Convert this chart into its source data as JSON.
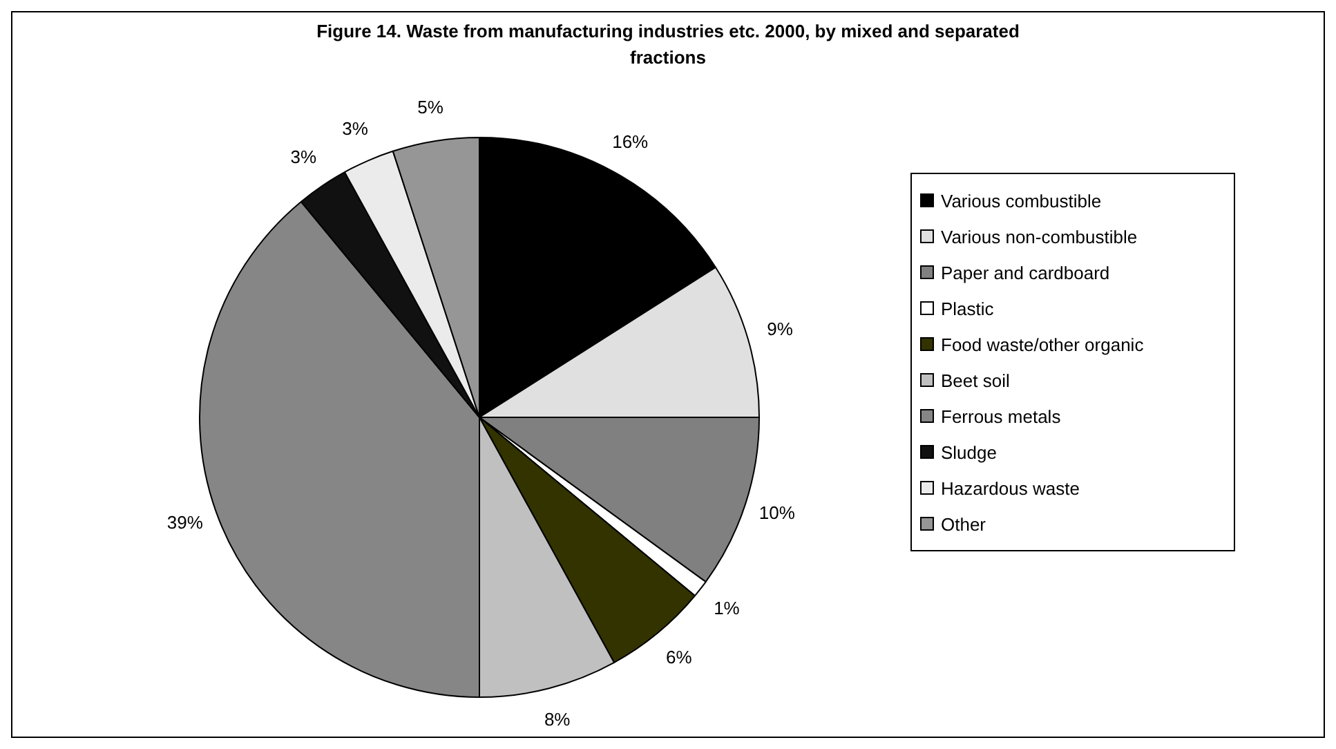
{
  "chart_data": {
    "type": "pie",
    "title": "Figure 14. Waste from manufacturing industries etc. 2000, by mixed and separated fractions",
    "categories": [
      "Various combustible",
      "Various non-combustible",
      "Paper and cardboard",
      "Plastic",
      "Food waste/other organic",
      "Beet soil",
      "Ferrous metals",
      "Sludge",
      "Hazardous waste",
      "Other"
    ],
    "values": [
      16,
      9,
      10,
      1,
      6,
      8,
      39,
      3,
      3,
      5
    ],
    "colors": [
      "#000000",
      "#e0e0e0",
      "#808080",
      "#ffffff",
      "#333300",
      "#c0c0c0",
      "#868686",
      "#111111",
      "#ebebeb",
      "#969696"
    ],
    "value_labels": [
      "16%",
      "9%",
      "10%",
      "1%",
      "6%",
      "8%",
      "39%",
      "3%",
      "3%",
      "5%"
    ],
    "legend": "right"
  }
}
